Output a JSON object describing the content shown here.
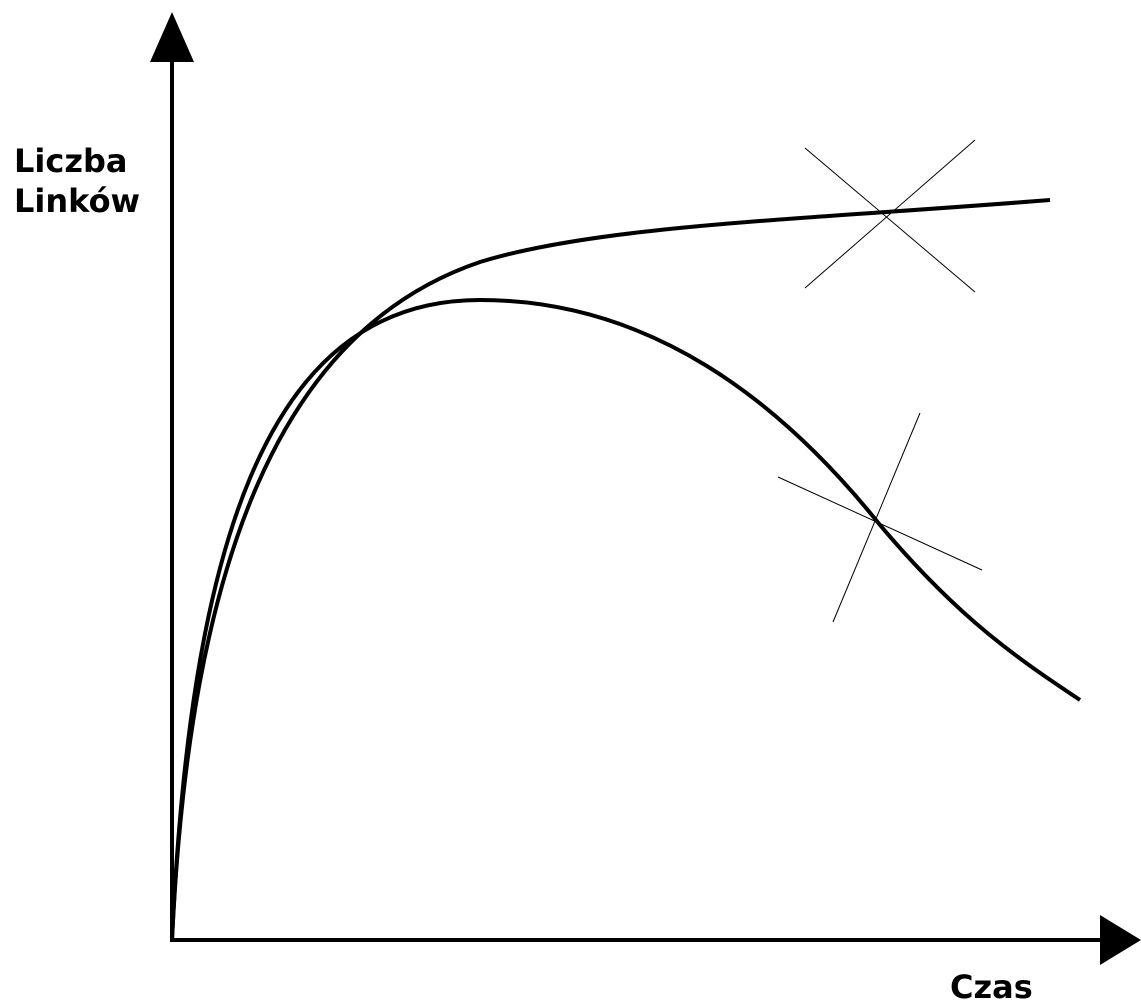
{
  "axes": {
    "y_label": [
      "Liczba",
      "Linków"
    ],
    "x_label": "Czas"
  }
}
